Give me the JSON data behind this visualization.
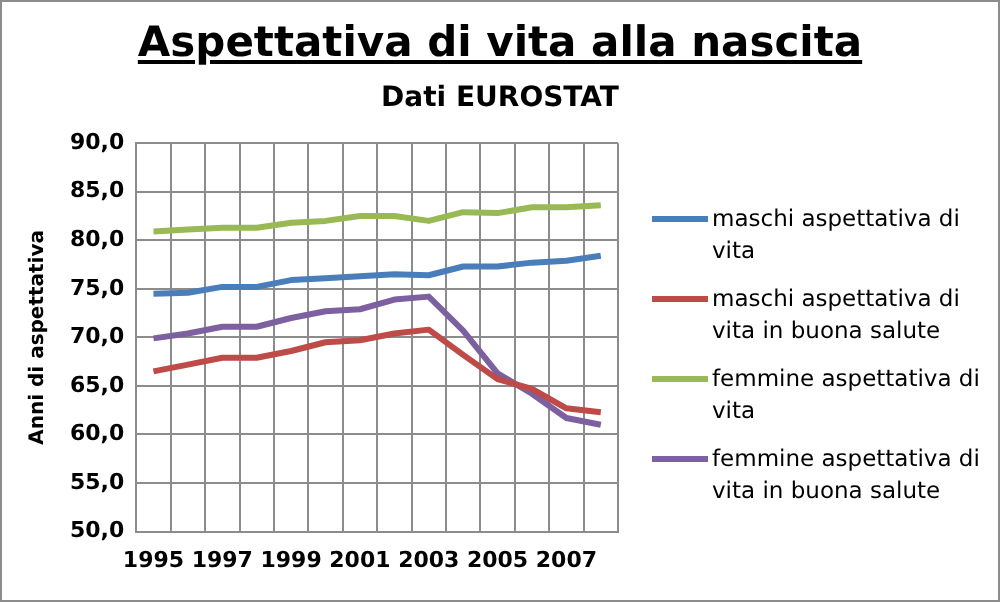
{
  "chart_data": {
    "type": "line",
    "title": "Aspettativa di vita alla nascita",
    "subtitle": "Dati EUROSTAT",
    "ylabel": "Anni di aspettativa",
    "categories": [
      "1995",
      null,
      "1997",
      null,
      "1999",
      null,
      "2001",
      null,
      "2003",
      null,
      "2005",
      null,
      "2007",
      null
    ],
    "series": [
      {
        "name": "maschi aspettativa di vita",
        "color": "#4a7ebb",
        "values": [
          74.5,
          74.6,
          75.2,
          75.2,
          75.9,
          76.1,
          76.3,
          76.5,
          76.4,
          77.3,
          77.3,
          77.7,
          77.9,
          78.4
        ]
      },
      {
        "name": "maschi aspettativa di vita in buona salute",
        "color": "#be4b48",
        "values": [
          66.5,
          67.2,
          67.9,
          67.9,
          68.6,
          69.5,
          69.7,
          70.4,
          70.8,
          68.2,
          65.7,
          64.7,
          62.7,
          62.3
        ]
      },
      {
        "name": "femmine aspettativa di vita",
        "color": "#98b954",
        "values": [
          80.9,
          81.1,
          81.3,
          81.3,
          81.8,
          82.0,
          82.5,
          82.5,
          82.0,
          82.9,
          82.8,
          83.4,
          83.4,
          83.6
        ]
      },
      {
        "name": "femmine aspettativa di vita in buona salute",
        "color": "#7d60a0",
        "values": [
          69.9,
          70.4,
          71.1,
          71.1,
          72.0,
          72.7,
          72.9,
          73.9,
          74.2,
          70.7,
          66.3,
          64.2,
          61.7,
          61.0
        ]
      }
    ],
    "ylim": [
      50,
      90
    ],
    "yticks": [
      {
        "value": 50,
        "label": "50,0"
      },
      {
        "value": 55,
        "label": "55,0"
      },
      {
        "value": 60,
        "label": "60,0"
      },
      {
        "value": 65,
        "label": "65,0"
      },
      {
        "value": 70,
        "label": "70,0"
      },
      {
        "value": 75,
        "label": "75,0"
      },
      {
        "value": 80,
        "label": "80,0"
      },
      {
        "value": 85,
        "label": "85,0"
      },
      {
        "value": 90,
        "label": "90,0"
      }
    ],
    "grid": true,
    "legend": "right",
    "marker": "none",
    "line_style": "solid"
  }
}
